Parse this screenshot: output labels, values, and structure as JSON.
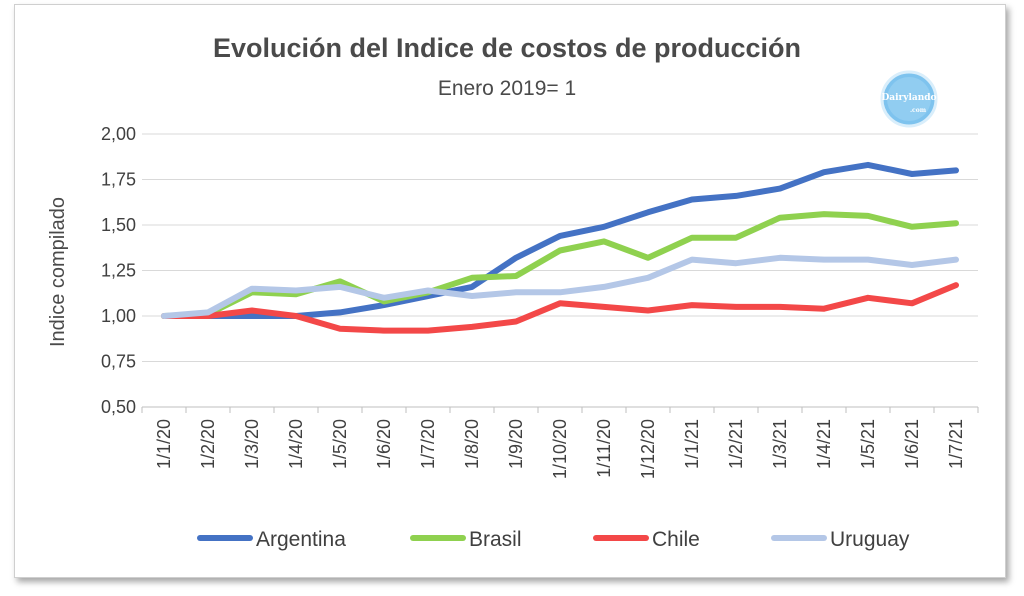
{
  "chart_data": {
    "type": "line",
    "title": "Evolución del Indice de costos de producción",
    "subtitle": "Enero 2019= 1",
    "xlabel": "",
    "ylabel": "Indice compilado",
    "ylim": [
      0.5,
      2.0
    ],
    "yticks": [
      "0,50",
      "0,75",
      "1,00",
      "1,25",
      "1,50",
      "1,75",
      "2,00"
    ],
    "ytick_values": [
      0.5,
      0.75,
      1.0,
      1.25,
      1.5,
      1.75,
      2.0
    ],
    "categories": [
      "1/1/20",
      "1/2/20",
      "1/3/20",
      "1/4/20",
      "1/5/20",
      "1/6/20",
      "1/7/20",
      "1/8/20",
      "1/9/20",
      "1/10/20",
      "1/11/20",
      "1/12/20",
      "1/1/21",
      "1/2/21",
      "1/3/21",
      "1/4/21",
      "1/5/21",
      "1/6/21",
      "1/7/21"
    ],
    "grid": true,
    "legend_position": "bottom",
    "series": [
      {
        "name": "Argentina",
        "color": "#4472C4",
        "values": [
          1.0,
          1.0,
          1.0,
          1.0,
          1.02,
          1.06,
          1.11,
          1.16,
          1.32,
          1.44,
          1.49,
          1.57,
          1.64,
          1.66,
          1.7,
          1.79,
          1.83,
          1.78,
          1.8
        ]
      },
      {
        "name": "Brasil",
        "color": "#8FD14F",
        "values": [
          1.0,
          1.01,
          1.13,
          1.12,
          1.19,
          1.08,
          1.13,
          1.21,
          1.22,
          1.36,
          1.41,
          1.32,
          1.43,
          1.43,
          1.54,
          1.56,
          1.55,
          1.49,
          1.51
        ]
      },
      {
        "name": "Chile",
        "color": "#F34848",
        "values": [
          1.0,
          1.0,
          1.03,
          1.0,
          0.93,
          0.92,
          0.92,
          0.94,
          0.97,
          1.07,
          1.05,
          1.03,
          1.06,
          1.05,
          1.05,
          1.04,
          1.1,
          1.07,
          1.17
        ]
      },
      {
        "name": "Uruguay",
        "color": "#B4C7E7",
        "values": [
          1.0,
          1.02,
          1.15,
          1.14,
          1.16,
          1.1,
          1.14,
          1.11,
          1.13,
          1.13,
          1.16,
          1.21,
          1.31,
          1.29,
          1.32,
          1.31,
          1.31,
          1.28,
          1.31
        ]
      }
    ]
  },
  "logo": {
    "text": "Dairylando",
    "sub": ".com"
  }
}
